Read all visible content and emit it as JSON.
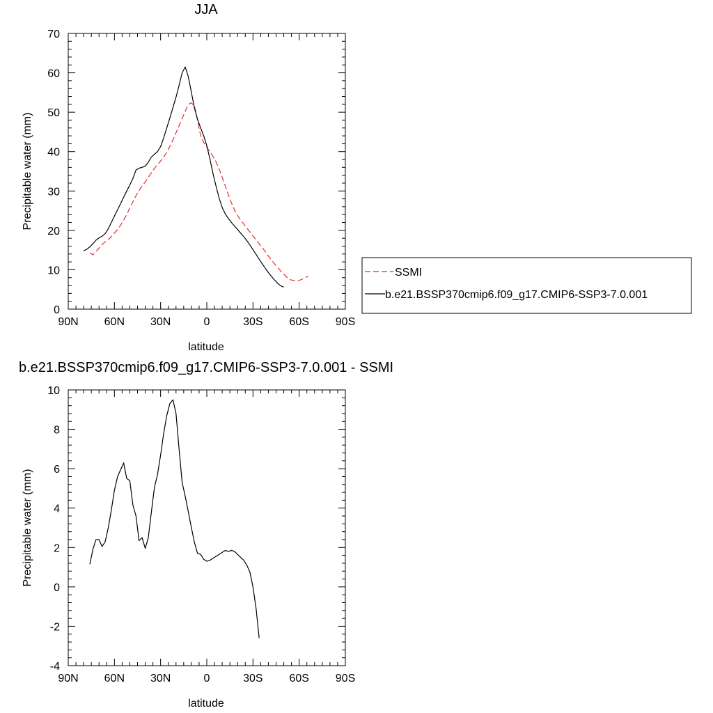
{
  "chart_data": [
    {
      "type": "line",
      "title": "JJA",
      "xlabel": "latitude",
      "ylabel": "Precipitable water (mm)",
      "xlim": [
        90,
        -90
      ],
      "ylim": [
        0,
        70
      ],
      "x_ticks": [
        90,
        60,
        30,
        0,
        -30,
        -60,
        -90
      ],
      "x_tick_labels": [
        "90N",
        "60N",
        "30N",
        "0",
        "30S",
        "60S",
        "90S"
      ],
      "y_ticks": [
        0,
        10,
        20,
        30,
        40,
        50,
        60,
        70
      ],
      "y_tick_labels": [
        "0",
        "10",
        "20",
        "30",
        "40",
        "50",
        "60",
        "70"
      ],
      "grid": false,
      "legend": "right",
      "series": [
        {
          "name": "SSMI",
          "color": "#e8292b",
          "dash": true,
          "points": [
            [
              76,
              14.3
            ],
            [
              74,
              13.8
            ],
            [
              72,
              14.6
            ],
            [
              70,
              15.5
            ],
            [
              68,
              16.4
            ],
            [
              66,
              17.1
            ],
            [
              64,
              17.7
            ],
            [
              62,
              18.4
            ],
            [
              60,
              19.3
            ],
            [
              58,
              20.2
            ],
            [
              56,
              21.3
            ],
            [
              54,
              22.6
            ],
            [
              52,
              24.0
            ],
            [
              50,
              25.7
            ],
            [
              48,
              27.3
            ],
            [
              46,
              28.8
            ],
            [
              44,
              30.1
            ],
            [
              42,
              31.3
            ],
            [
              40,
              32.3
            ],
            [
              38,
              33.5
            ],
            [
              36,
              34.6
            ],
            [
              34,
              35.7
            ],
            [
              32,
              36.7
            ],
            [
              30,
              37.6
            ],
            [
              28,
              38.6
            ],
            [
              26,
              39.8
            ],
            [
              24,
              41.3
            ],
            [
              22,
              43.0
            ],
            [
              20,
              44.8
            ],
            [
              18,
              46.6
            ],
            [
              16,
              48.4
            ],
            [
              14,
              50.2
            ],
            [
              12,
              52.0
            ],
            [
              10,
              52.4
            ],
            [
              8,
              51.5
            ],
            [
              6,
              48.0
            ],
            [
              4,
              44.0
            ],
            [
              2,
              42.3
            ],
            [
              0,
              41.1
            ],
            [
              -2,
              40.0
            ],
            [
              -4,
              38.8
            ],
            [
              -6,
              37.4
            ],
            [
              -8,
              35.6
            ],
            [
              -10,
              33.5
            ],
            [
              -12,
              31.3
            ],
            [
              -14,
              29.0
            ],
            [
              -16,
              27.0
            ],
            [
              -18,
              25.2
            ],
            [
              -20,
              23.8
            ],
            [
              -22,
              22.6
            ],
            [
              -24,
              21.6
            ],
            [
              -26,
              20.6
            ],
            [
              -28,
              19.6
            ],
            [
              -30,
              18.6
            ],
            [
              -32,
              17.6
            ],
            [
              -34,
              16.6
            ],
            [
              -36,
              15.6
            ],
            [
              -38,
              14.6
            ],
            [
              -40,
              13.5
            ],
            [
              -42,
              12.5
            ],
            [
              -44,
              11.5
            ],
            [
              -46,
              10.6
            ],
            [
              -48,
              9.7
            ],
            [
              -50,
              8.9
            ],
            [
              -52,
              8.1
            ],
            [
              -54,
              7.5
            ],
            [
              -56,
              7.3
            ],
            [
              -58,
              7.2
            ],
            [
              -60,
              7.3
            ],
            [
              -62,
              7.6
            ],
            [
              -64,
              8.0
            ],
            [
              -66,
              8.4
            ]
          ]
        },
        {
          "name": "b.e21.BSSP370cmip6.f09_g17.CMIP6-SSP3-7.0.001",
          "color": "#000000",
          "dash": false,
          "points": [
            [
              80,
              14.8
            ],
            [
              78,
              15.2
            ],
            [
              76,
              15.8
            ],
            [
              74,
              16.6
            ],
            [
              72,
              17.5
            ],
            [
              70,
              18.1
            ],
            [
              68,
              18.5
            ],
            [
              66,
              19.2
            ],
            [
              64,
              20.4
            ],
            [
              62,
              22.0
            ],
            [
              60,
              23.6
            ],
            [
              58,
              25.2
            ],
            [
              56,
              26.8
            ],
            [
              54,
              28.4
            ],
            [
              52,
              30.0
            ],
            [
              50,
              31.5
            ],
            [
              48,
              33.2
            ],
            [
              46,
              35.3
            ],
            [
              44,
              35.8
            ],
            [
              42,
              36.0
            ],
            [
              40,
              36.3
            ],
            [
              38,
              37.3
            ],
            [
              36,
              38.6
            ],
            [
              34,
              39.3
            ],
            [
              32,
              40.0
            ],
            [
              30,
              41.3
            ],
            [
              28,
              43.5
            ],
            [
              26,
              46.0
            ],
            [
              24,
              48.5
            ],
            [
              22,
              51.2
            ],
            [
              20,
              53.8
            ],
            [
              18,
              56.8
            ],
            [
              16,
              60.0
            ],
            [
              14,
              61.5
            ],
            [
              12,
              59.0
            ],
            [
              10,
              55.0
            ],
            [
              8,
              51.0
            ],
            [
              6,
              48.2
            ],
            [
              4,
              46.0
            ],
            [
              2,
              44.0
            ],
            [
              0,
              41.5
            ],
            [
              -2,
              38.2
            ],
            [
              -4,
              34.5
            ],
            [
              -6,
              31.2
            ],
            [
              -8,
              28.2
            ],
            [
              -10,
              25.8
            ],
            [
              -12,
              24.2
            ],
            [
              -14,
              23.0
            ],
            [
              -16,
              22.0
            ],
            [
              -18,
              21.1
            ],
            [
              -20,
              20.2
            ],
            [
              -22,
              19.3
            ],
            [
              -24,
              18.4
            ],
            [
              -26,
              17.4
            ],
            [
              -28,
              16.3
            ],
            [
              -30,
              15.1
            ],
            [
              -32,
              13.9
            ],
            [
              -34,
              12.7
            ],
            [
              -36,
              11.5
            ],
            [
              -38,
              10.4
            ],
            [
              -40,
              9.3
            ],
            [
              -42,
              8.3
            ],
            [
              -44,
              7.4
            ],
            [
              -46,
              6.6
            ],
            [
              -48,
              5.9
            ],
            [
              -50,
              5.6
            ]
          ]
        }
      ]
    },
    {
      "type": "line",
      "title": "b.e21.BSSP370cmip6.f09_g17.CMIP6-SSP3-7.0.001 - SSMI",
      "xlabel": "latitude",
      "ylabel": "Precipitable water (mm)",
      "xlim": [
        90,
        -90
      ],
      "ylim": [
        -4,
        10
      ],
      "x_ticks": [
        90,
        60,
        30,
        0,
        -30,
        -60,
        -90
      ],
      "x_tick_labels": [
        "90N",
        "60N",
        "30N",
        "0",
        "30S",
        "60S",
        "90S"
      ],
      "y_ticks": [
        -4,
        -2,
        0,
        2,
        4,
        6,
        8,
        10
      ],
      "y_tick_labels": [
        "-4",
        "-2",
        "0",
        "2",
        "4",
        "6",
        "8",
        "10"
      ],
      "grid": false,
      "series": [
        {
          "color": "#000000",
          "dash": false,
          "points": [
            [
              76,
              1.15
            ],
            [
              74,
              1.9
            ],
            [
              72,
              2.4
            ],
            [
              70,
              2.4
            ],
            [
              68,
              2.05
            ],
            [
              66,
              2.3
            ],
            [
              64,
              3.0
            ],
            [
              62,
              3.9
            ],
            [
              60,
              4.9
            ],
            [
              58,
              5.6
            ],
            [
              56,
              5.95
            ],
            [
              54,
              6.3
            ],
            [
              52,
              5.5
            ],
            [
              50,
              5.4
            ],
            [
              48,
              4.15
            ],
            [
              46,
              3.6
            ],
            [
              44,
              2.35
            ],
            [
              42,
              2.5
            ],
            [
              40,
              1.95
            ],
            [
              38,
              2.5
            ],
            [
              36,
              3.8
            ],
            [
              34,
              5.05
            ],
            [
              32,
              5.7
            ],
            [
              30,
              6.7
            ],
            [
              28,
              7.8
            ],
            [
              26,
              8.7
            ],
            [
              24,
              9.3
            ],
            [
              22,
              9.5
            ],
            [
              20,
              8.8
            ],
            [
              18,
              7.0
            ],
            [
              16,
              5.3
            ],
            [
              14,
              4.6
            ],
            [
              12,
              3.8
            ],
            [
              10,
              3.0
            ],
            [
              8,
              2.25
            ],
            [
              6,
              1.7
            ],
            [
              4,
              1.65
            ],
            [
              2,
              1.4
            ],
            [
              0,
              1.3
            ],
            [
              -2,
              1.35
            ],
            [
              -4,
              1.45
            ],
            [
              -6,
              1.55
            ],
            [
              -8,
              1.65
            ],
            [
              -10,
              1.75
            ],
            [
              -12,
              1.85
            ],
            [
              -14,
              1.8
            ],
            [
              -16,
              1.85
            ],
            [
              -18,
              1.8
            ],
            [
              -20,
              1.65
            ],
            [
              -22,
              1.5
            ],
            [
              -24,
              1.35
            ],
            [
              -26,
              1.1
            ],
            [
              -28,
              0.75
            ],
            [
              -30,
              0.0
            ],
            [
              -32,
              -1.1
            ],
            [
              -34,
              -2.6
            ]
          ]
        }
      ]
    }
  ]
}
